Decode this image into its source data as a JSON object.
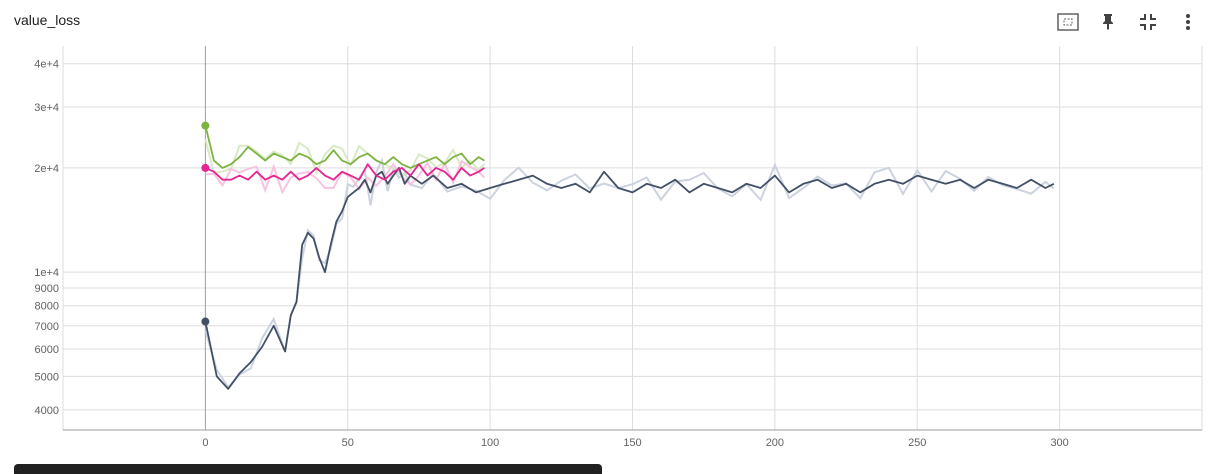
{
  "header": {
    "title": "value_loss"
  },
  "toolbar": {
    "icons": [
      "fit-domain-icon",
      "pin-icon",
      "collapse-icon",
      "more-vert-icon"
    ]
  },
  "colors": {
    "grid": "#dddddd",
    "axis": "#9e9e9e",
    "series_dark": "#425066",
    "series_dark_raw": "#c6cedb",
    "series_green": "#7cb342",
    "series_green_raw": "#d4e8bf",
    "series_pink": "#e52592",
    "series_pink_raw": "#f7bcde"
  },
  "chart_data": {
    "type": "line",
    "title": "value_loss",
    "xlabel": "",
    "ylabel": "",
    "y_scale": "log",
    "xlim": [
      -50,
      350
    ],
    "ylim": [
      3500,
      45000
    ],
    "x_ticks": [
      0,
      50,
      100,
      150,
      200,
      250,
      300
    ],
    "x_tick_labels": [
      "0",
      "50",
      "100",
      "150",
      "200",
      "250",
      "300"
    ],
    "y_ticks": [
      4000,
      5000,
      6000,
      7000,
      8000,
      9000,
      10000,
      20000,
      30000,
      40000
    ],
    "y_tick_labels": [
      "4000",
      "5000",
      "6000",
      "7000",
      "8000",
      "9000",
      "1e+4",
      "2e+4",
      "3e+4",
      "4e+4"
    ],
    "grid": true,
    "series": [
      {
        "color": "#425066",
        "x": [
          0,
          4,
          8,
          12,
          16,
          20,
          24,
          28,
          30,
          32,
          34,
          36,
          38,
          40,
          42,
          44,
          46,
          48,
          50,
          52,
          54,
          56,
          58,
          60,
          62,
          64,
          66,
          68,
          70,
          72,
          76,
          80,
          85,
          90,
          95,
          100,
          105,
          110,
          115,
          120,
          125,
          130,
          135,
          140,
          145,
          150,
          155,
          160,
          165,
          170,
          175,
          180,
          185,
          190,
          195,
          200,
          205,
          210,
          215,
          220,
          225,
          230,
          235,
          240,
          245,
          250,
          255,
          260,
          265,
          270,
          275,
          280,
          285,
          290,
          295,
          298
        ],
        "y": [
          7200,
          5000,
          4600,
          5100,
          5500,
          6100,
          7000,
          5900,
          7500,
          8200,
          12000,
          13000,
          12500,
          11000,
          10000,
          12000,
          14000,
          15000,
          16500,
          17000,
          17500,
          18500,
          17000,
          19000,
          19500,
          18000,
          19000,
          20000,
          18000,
          19000,
          18000,
          19000,
          17500,
          18000,
          17000,
          17500,
          18000,
          18500,
          19000,
          18000,
          17500,
          18000,
          17000,
          19500,
          17500,
          17000,
          18000,
          17500,
          18500,
          17000,
          18000,
          17500,
          17000,
          18000,
          17500,
          19000,
          17000,
          18000,
          18500,
          17500,
          18000,
          17000,
          18000,
          18500,
          18000,
          19000,
          18500,
          18000,
          18500,
          17500,
          18500,
          18000,
          17500,
          18500,
          17500,
          18000
        ]
      },
      {
        "color": "#7cb342",
        "x": [
          0,
          3,
          6,
          9,
          12,
          15,
          18,
          21,
          24,
          27,
          30,
          33,
          36,
          39,
          42,
          45,
          48,
          51,
          54,
          57,
          60,
          63,
          66,
          69,
          72,
          75,
          78,
          81,
          84,
          87,
          90,
          93,
          96,
          98
        ],
        "y": [
          26500,
          21000,
          20000,
          20500,
          21500,
          23000,
          22000,
          21000,
          22000,
          21500,
          21000,
          22000,
          21500,
          20500,
          21000,
          22500,
          21000,
          20500,
          21500,
          22000,
          21000,
          20500,
          21500,
          20500,
          20000,
          20500,
          21000,
          21500,
          20500,
          21500,
          22000,
          20500,
          21500,
          21000
        ]
      },
      {
        "color": "#e52592",
        "x": [
          0,
          3,
          6,
          9,
          12,
          15,
          18,
          21,
          24,
          27,
          30,
          33,
          36,
          39,
          42,
          45,
          48,
          51,
          54,
          57,
          60,
          63,
          66,
          69,
          72,
          75,
          78,
          81,
          84,
          87,
          90,
          93,
          96,
          98
        ],
        "y": [
          20000,
          19500,
          18500,
          18500,
          19000,
          18500,
          19500,
          18500,
          19000,
          18500,
          19500,
          18500,
          19000,
          20000,
          19000,
          18500,
          19500,
          19000,
          18500,
          20500,
          19000,
          18500,
          19500,
          20000,
          19000,
          20500,
          19000,
          20000,
          19500,
          18500,
          20000,
          19000,
          19500,
          20000
        ]
      }
    ]
  }
}
